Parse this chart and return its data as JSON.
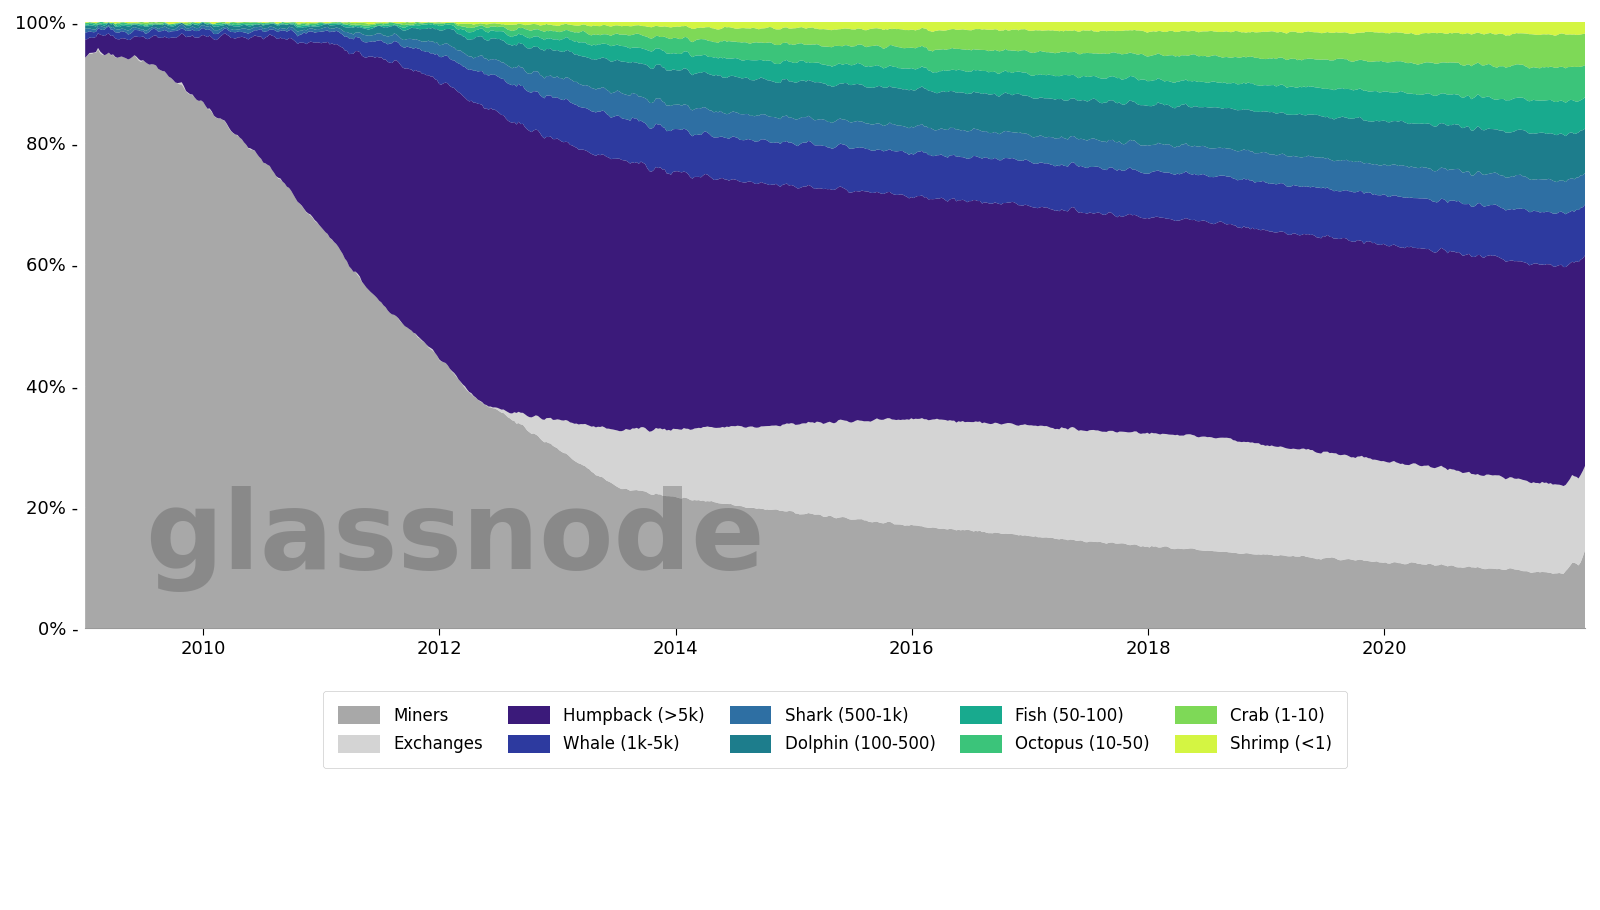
{
  "background_color": "#ffffff",
  "plot_bg_color": "#e8e8e8",
  "layers": [
    {
      "name": "Miners",
      "color": "#a8a8a8"
    },
    {
      "name": "Exchanges",
      "color": "#d4d4d4"
    },
    {
      "name": "Humpback (>5k)",
      "color": "#3b1a7a"
    },
    {
      "name": "Whale (1k-5k)",
      "color": "#2d3a9f"
    },
    {
      "name": "Shark (500-1k)",
      "color": "#2e6fa3"
    },
    {
      "name": "Dolphin (100-500)",
      "color": "#1d7d8c"
    },
    {
      "name": "Fish (50-100)",
      "color": "#18aa8e"
    },
    {
      "name": "Octopus (10-50)",
      "color": "#3bc47a"
    },
    {
      "name": "Crab (1-10)",
      "color": "#7ed957"
    },
    {
      "name": "Shrimp (<1)",
      "color": "#d4f542"
    }
  ],
  "watermark": "glassnode",
  "x_ticks": [
    2010,
    2012,
    2014,
    2016,
    2018,
    2020
  ],
  "y_ticks": [
    0.0,
    0.2,
    0.4,
    0.6,
    0.8,
    1.0
  ],
  "y_tick_labels": [
    "0% -",
    "20% -",
    "40% -",
    "60% -",
    "80% -",
    "100% -"
  ]
}
